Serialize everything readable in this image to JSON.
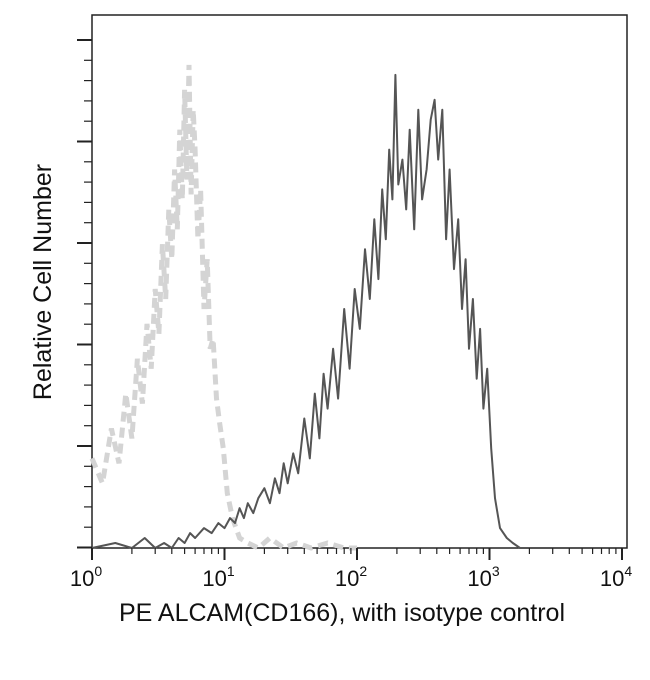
{
  "chart_data": {
    "type": "line",
    "title": "",
    "xlabel": "PE ALCAM(CD166), with isotype control",
    "ylabel": "Relative Cell Number",
    "x_scale": "log",
    "xlim": [
      1,
      10000
    ],
    "ylim": [
      0,
      1
    ],
    "grid": false,
    "legend": "none",
    "x_ticks": [
      {
        "base": "10",
        "exp": "0"
      },
      {
        "base": "10",
        "exp": "1"
      },
      {
        "base": "10",
        "exp": "2"
      },
      {
        "base": "10",
        "exp": "3"
      },
      {
        "base": "10",
        "exp": "4"
      }
    ],
    "series": [
      {
        "style": "dashed",
        "color": "#d4d4d4",
        "x": [
          1.0,
          1.2,
          1.4,
          1.6,
          1.8,
          2.0,
          2.2,
          2.4,
          2.6,
          2.8,
          3.0,
          3.2,
          3.4,
          3.6,
          3.8,
          4.0,
          4.2,
          4.4,
          4.6,
          4.8,
          5.0,
          5.2,
          5.4,
          5.6,
          5.8,
          6.0,
          6.3,
          6.6,
          7.0,
          7.4,
          7.8,
          8.2,
          8.7,
          9.2,
          9.8,
          10.5,
          11.5,
          13.0,
          15.0,
          18.0,
          22.0,
          28.0,
          35.0,
          45.0,
          60.0,
          80.0,
          100.0
        ],
        "y": [
          0.18,
          0.13,
          0.24,
          0.17,
          0.31,
          0.22,
          0.38,
          0.29,
          0.45,
          0.36,
          0.52,
          0.43,
          0.61,
          0.5,
          0.68,
          0.58,
          0.76,
          0.64,
          0.84,
          0.7,
          0.92,
          0.74,
          0.97,
          0.71,
          0.88,
          0.8,
          0.62,
          0.72,
          0.48,
          0.58,
          0.4,
          0.42,
          0.3,
          0.25,
          0.2,
          0.11,
          0.06,
          0.02,
          0.01,
          0.0,
          0.02,
          0.0,
          0.01,
          0.0,
          0.01,
          0.0,
          0.0
        ]
      },
      {
        "style": "solid",
        "color": "#555555",
        "x": [
          1.0,
          1.5,
          2.0,
          2.5,
          3.0,
          3.5,
          4.0,
          4.5,
          5.0,
          5.5,
          6.0,
          7.0,
          8.0,
          9.0,
          10.0,
          11.0,
          12.0,
          13.0,
          14.0,
          15.0,
          16.5,
          18.0,
          20.0,
          22.0,
          24.0,
          26.0,
          28.0,
          30.0,
          33.0,
          36.0,
          40.0,
          44.0,
          48.0,
          52.0,
          56.0,
          60.0,
          66.0,
          72.0,
          80.0,
          88.0,
          96.0,
          105.0,
          115.0,
          125.0,
          135.0,
          145.0,
          155.0,
          165.0,
          175.0,
          185.0,
          195.0,
          205.0,
          220.0,
          235.0,
          250.0,
          270.0,
          290.0,
          310.0,
          335.0,
          360.0,
          385.0,
          410.0,
          440.0,
          470.0,
          500.0,
          540.0,
          580.0,
          620.0,
          660.0,
          700.0,
          750.0,
          800.0,
          850.0,
          900.0,
          960.0,
          1030.0,
          1100.0,
          1200.0,
          1350.0,
          1500.0,
          1700.0,
          2000.0,
          3000.0,
          5000.0,
          10000.0
        ],
        "y": [
          0.0,
          0.01,
          0.0,
          0.02,
          0.0,
          0.01,
          0.0,
          0.02,
          0.01,
          0.03,
          0.02,
          0.04,
          0.03,
          0.05,
          0.04,
          0.06,
          0.05,
          0.08,
          0.06,
          0.09,
          0.07,
          0.1,
          0.12,
          0.09,
          0.14,
          0.11,
          0.17,
          0.13,
          0.19,
          0.15,
          0.26,
          0.18,
          0.31,
          0.22,
          0.35,
          0.28,
          0.4,
          0.3,
          0.48,
          0.36,
          0.52,
          0.44,
          0.6,
          0.5,
          0.66,
          0.54,
          0.72,
          0.62,
          0.8,
          0.7,
          0.95,
          0.73,
          0.78,
          0.68,
          0.84,
          0.64,
          0.88,
          0.7,
          0.76,
          0.86,
          0.9,
          0.78,
          0.88,
          0.62,
          0.76,
          0.56,
          0.66,
          0.48,
          0.58,
          0.4,
          0.5,
          0.34,
          0.44,
          0.28,
          0.36,
          0.2,
          0.1,
          0.04,
          0.02,
          0.01,
          0.0,
          0.0,
          0.0,
          0.0,
          0.0
        ]
      }
    ]
  }
}
